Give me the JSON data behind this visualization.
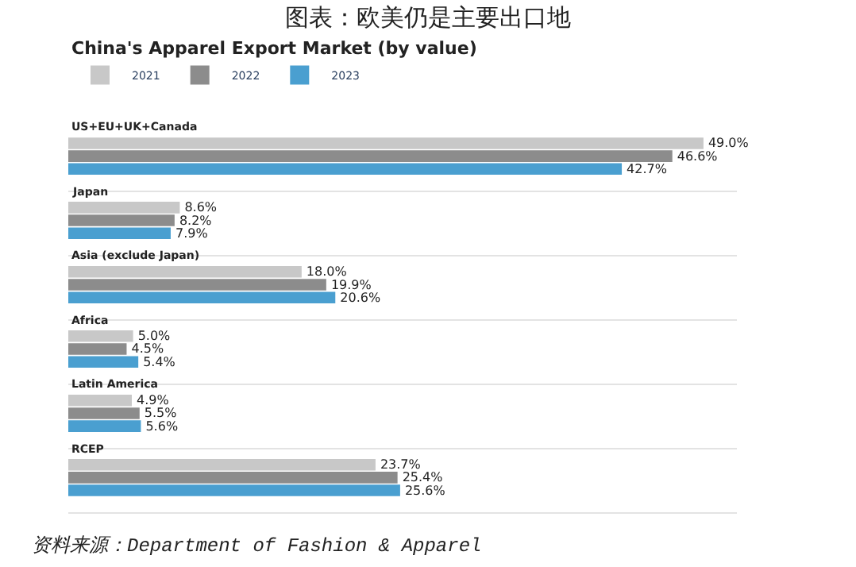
{
  "chart_data": {
    "type": "bar",
    "orientation": "horizontal",
    "title": "图表：欧美仍是主要出口地",
    "subtitle": "China's Apparel Export Market (by value)",
    "categories": [
      "US+EU+UK+Canada",
      "Japan",
      "Asia (exclude Japan)",
      "Africa",
      "Latin America",
      "RCEP"
    ],
    "series": [
      {
        "name": "2021",
        "color": "#c8c8c8",
        "values": [
          49.0,
          8.6,
          18.0,
          5.0,
          4.9,
          23.7
        ],
        "value_labels": [
          "49.0%",
          "8.6%",
          "18.0%",
          "5.0%",
          "4.9%",
          "23.7%"
        ]
      },
      {
        "name": "2022",
        "color": "#8c8c8c",
        "values": [
          46.6,
          8.2,
          19.9,
          4.5,
          5.5,
          25.4
        ],
        "value_labels": [
          "46.6%",
          "8.2%",
          "19.9%",
          "4.5%",
          "5.5%",
          "25.4%"
        ]
      },
      {
        "name": "2023",
        "color": "#4a9fd0",
        "values": [
          42.7,
          7.9,
          20.6,
          5.4,
          5.6,
          25.6
        ],
        "value_labels": [
          "42.7%",
          "7.9%",
          "20.6%",
          "5.4%",
          "5.6%",
          "25.6%"
        ]
      }
    ],
    "legend": "top left",
    "grid": "y",
    "annotations": [
      "资料来源：Department of Fashion & Apparel"
    ]
  }
}
